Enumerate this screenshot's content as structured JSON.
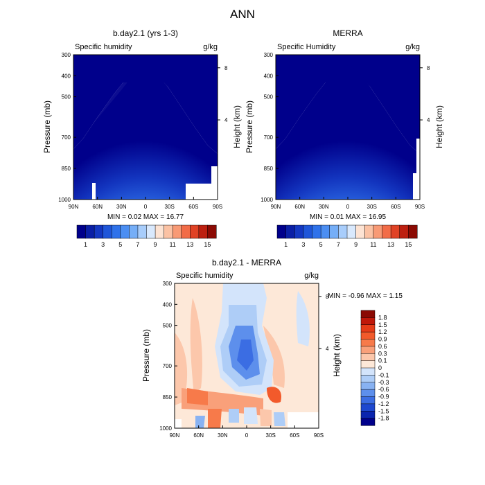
{
  "main_title": "ANN",
  "chart_data": [
    {
      "type": "heatmap",
      "title": "b.day2.1 (yrs 1-3)",
      "left_label": "Specific humidity",
      "units": "g/kg",
      "ylabel": "Pressure (mb)",
      "right_label": "Height (km)",
      "x_ticks": [
        "90N",
        "60N",
        "30N",
        "0",
        "30S",
        "60S",
        "90S"
      ],
      "y_ticks": [
        "300",
        "400",
        "500",
        "700",
        "850",
        "1000"
      ],
      "right_ticks": [
        "8",
        "4"
      ],
      "min_max_text": "MIN =   0.02  MAX =  16.77",
      "colorbar_labels": [
        "1",
        "3",
        "5",
        "7",
        "9",
        "11",
        "13",
        "15"
      ],
      "colors": [
        "#00008b",
        "#0a1fa6",
        "#1438c2",
        "#1f56d9",
        "#2f72ea",
        "#4b8ef2",
        "#75aef7",
        "#a8cdfb",
        "#d9e9fd",
        "#fde3d3",
        "#fbc2a4",
        "#f89a75",
        "#f26c47",
        "#e04225",
        "#bd2010",
        "#8b0a03"
      ]
    },
    {
      "type": "heatmap",
      "title": "MERRA",
      "left_label": "Specific Humidity",
      "units": "g/kg",
      "ylabel": "Pressure (mb)",
      "right_label": "Height (km)",
      "x_ticks": [
        "90N",
        "60N",
        "30N",
        "0",
        "30S",
        "60S",
        "90S"
      ],
      "y_ticks": [
        "300",
        "400",
        "500",
        "700",
        "850",
        "1000"
      ],
      "right_ticks": [
        "8",
        "4"
      ],
      "min_max_text": "MIN =   0.01  MAX =  16.95",
      "colorbar_labels": [
        "1",
        "3",
        "5",
        "7",
        "9",
        "11",
        "13",
        "15"
      ],
      "colors": [
        "#00008b",
        "#0a1fa6",
        "#1438c2",
        "#1f56d9",
        "#2f72ea",
        "#4b8ef2",
        "#75aef7",
        "#a8cdfb",
        "#d9e9fd",
        "#fde3d3",
        "#fbc2a4",
        "#f89a75",
        "#f26c47",
        "#e04225",
        "#bd2010",
        "#8b0a03"
      ]
    },
    {
      "type": "heatmap",
      "title": "b.day2.1 - MERRA",
      "left_label": "Specific humidity",
      "units": "g/kg",
      "ylabel": "Pressure (mb)",
      "right_label": "Height (km)",
      "x_ticks": [
        "90N",
        "60N",
        "30N",
        "0",
        "30S",
        "60S",
        "90S"
      ],
      "y_ticks": [
        "300",
        "400",
        "500",
        "700",
        "850",
        "1000"
      ],
      "right_ticks": [
        "8",
        "4"
      ],
      "min_max_text": "MIN =  -0.96  MAX =   1.15",
      "colorbar_labels": [
        "1.8",
        "1.5",
        "1.2",
        "0.9",
        "0.6",
        "0.3",
        "0.1",
        "0",
        "-0.1",
        "-0.3",
        "-0.6",
        "-0.9",
        "-1.2",
        "-1.5",
        "-1.8"
      ],
      "colors": [
        "#8b0a03",
        "#c0180a",
        "#e63c18",
        "#f25a2b",
        "#f77a4a",
        "#f9a07a",
        "#fcc7ab",
        "#fde8d8",
        "#d3e4fb",
        "#aecdf7",
        "#88b2f2",
        "#5d8fec",
        "#3b6de3",
        "#1d48cf",
        "#0a24ae",
        "#00008b"
      ]
    }
  ]
}
